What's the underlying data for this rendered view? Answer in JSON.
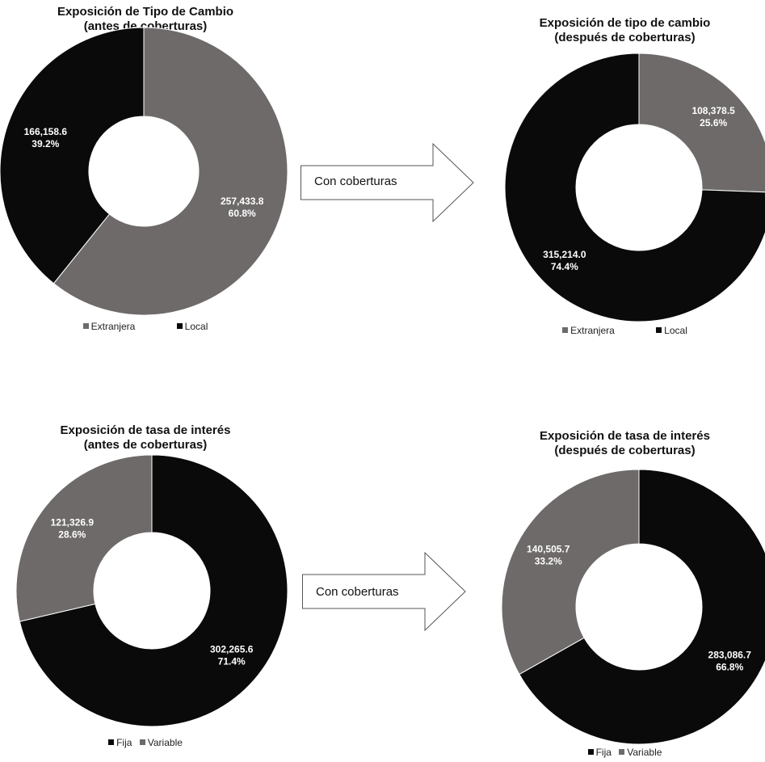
{
  "colors": {
    "gray": "#6e6a6a",
    "black": "#0a0a0a"
  },
  "arrow_label": "Con coberturas",
  "chart_data": [
    {
      "id": "fx-before",
      "type": "pie",
      "title_lines": [
        "Exposición de Tipo de Cambio",
        "(antes de coberturas)"
      ],
      "legend": [
        "Extranjera",
        "Local"
      ],
      "slices": [
        {
          "name": "Extranjera",
          "value": 257433.8,
          "value_label": "257,433.8",
          "percent_label": "60.8%",
          "color": "#6e6a6a"
        },
        {
          "name": "Local",
          "value": 166158.6,
          "value_label": "166,158.6",
          "percent_label": "39.2%",
          "color": "#0a0a0a"
        }
      ]
    },
    {
      "id": "fx-after",
      "type": "pie",
      "title_lines": [
        "Exposición de tipo de cambio",
        "(después de coberturas)"
      ],
      "legend": [
        "Extranjera",
        "Local"
      ],
      "slices": [
        {
          "name": "Extranjera",
          "value": 108378.5,
          "value_label": "108,378.5",
          "percent_label": "25.6%",
          "color": "#6e6a6a"
        },
        {
          "name": "Local",
          "value": 315214.0,
          "value_label": "315,214.0",
          "percent_label": "74.4%",
          "color": "#0a0a0a"
        }
      ]
    },
    {
      "id": "ir-before",
      "type": "pie",
      "title_lines": [
        "Exposición de tasa de interés",
        "(antes de coberturas)"
      ],
      "legend": [
        "Fija",
        "Variable"
      ],
      "slices": [
        {
          "name": "Fija",
          "value": 302265.6,
          "value_label": "302,265.6",
          "percent_label": "71.4%",
          "color": "#0a0a0a"
        },
        {
          "name": "Variable",
          "value": 121326.9,
          "value_label": "121,326.9",
          "percent_label": "28.6%",
          "color": "#6e6a6a"
        }
      ]
    },
    {
      "id": "ir-after",
      "type": "pie",
      "title_lines": [
        "Exposición de tasa de interés",
        "(después de coberturas)"
      ],
      "legend": [
        "Fija",
        "Variable"
      ],
      "slices": [
        {
          "name": "Fija",
          "value": 283086.7,
          "value_label": "283,086.7",
          "percent_label": "66.8%",
          "color": "#0a0a0a"
        },
        {
          "name": "Variable",
          "value": 140505.7,
          "value_label": "140,505.7",
          "percent_label": "33.2%",
          "color": "#6e6a6a"
        }
      ]
    }
  ]
}
